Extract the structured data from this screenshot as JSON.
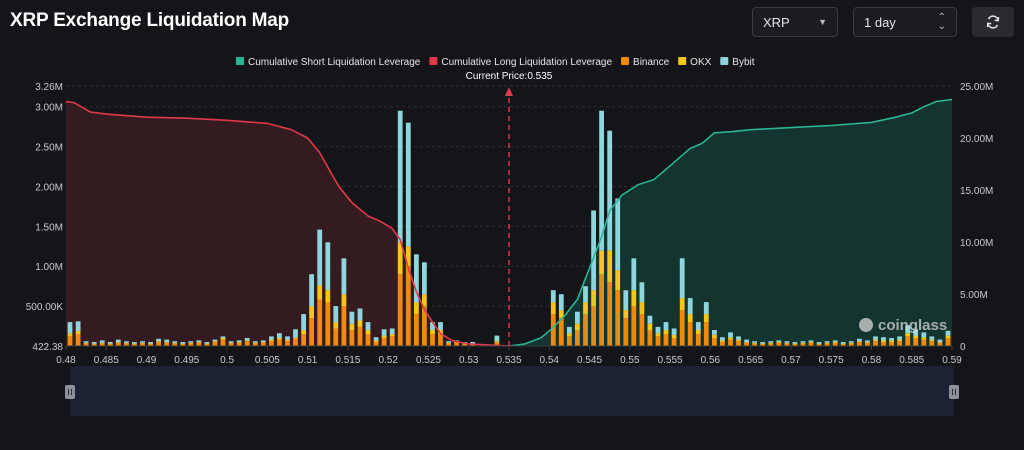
{
  "title": "XRP Exchange Liquidation Map",
  "controls": {
    "symbol": "XRP",
    "range": "1 day",
    "refresh_icon": "refresh-icon"
  },
  "chart_data": {
    "type": "bar",
    "title": "XRP Exchange Liquidation Map",
    "current_price_label": "Current Price:0.535",
    "current_price": 0.535,
    "legend": [
      {
        "name": "Cumulative Short Liquidation Leverage",
        "color": "#2bb596"
      },
      {
        "name": "Cumulative Long Liquidation Leverage",
        "color": "#e0394a"
      },
      {
        "name": "Binance",
        "color": "#f08a0c"
      },
      {
        "name": "OKX",
        "color": "#f5c518"
      },
      {
        "name": "Bybit",
        "color": "#8fd5dc"
      }
    ],
    "x_ticks": [
      "0.48",
      "0.485",
      "0.49",
      "0.495",
      "0.5",
      "0.505",
      "0.51",
      "0.515",
      "0.52",
      "0.525",
      "0.53",
      "0.535",
      "0.54",
      "0.545",
      "0.55",
      "0.555",
      "0.56",
      "0.565",
      "0.57",
      "0.575",
      "0.58",
      "0.585",
      "0.59"
    ],
    "x_range": [
      0.48,
      0.59
    ],
    "y_left_ticks": [
      "3.26M",
      "3.00M",
      "2.50M",
      "2.00M",
      "1.50M",
      "1.00M",
      "500.00K",
      "422.38"
    ],
    "y_left_range": [
      0,
      3260000
    ],
    "y_right_ticks": [
      "25.00M",
      "20.00M",
      "15.00M",
      "10.00M",
      "5.00M",
      "0"
    ],
    "y_right_range": [
      0,
      25000000
    ],
    "bars": [
      {
        "x": 0.4805,
        "binance": 120000,
        "okx": 40000,
        "bybit": 140000
      },
      {
        "x": 0.4815,
        "binance": 150000,
        "okx": 40000,
        "bybit": 120000
      },
      {
        "x": 0.4825,
        "binance": 30000,
        "okx": 10000,
        "bybit": 20000
      },
      {
        "x": 0.4835,
        "binance": 20000,
        "okx": 10000,
        "bybit": 20000
      },
      {
        "x": 0.4845,
        "binance": 30000,
        "okx": 10000,
        "bybit": 30000
      },
      {
        "x": 0.4855,
        "binance": 20000,
        "okx": 10000,
        "bybit": 20000
      },
      {
        "x": 0.4865,
        "binance": 40000,
        "okx": 10000,
        "bybit": 30000
      },
      {
        "x": 0.4875,
        "binance": 30000,
        "okx": 10000,
        "bybit": 20000
      },
      {
        "x": 0.4885,
        "binance": 20000,
        "okx": 10000,
        "bybit": 20000
      },
      {
        "x": 0.4895,
        "binance": 30000,
        "okx": 10000,
        "bybit": 20000
      },
      {
        "x": 0.4905,
        "binance": 20000,
        "okx": 10000,
        "bybit": 20000
      },
      {
        "x": 0.4915,
        "binance": 50000,
        "okx": 10000,
        "bybit": 30000
      },
      {
        "x": 0.4925,
        "binance": 40000,
        "okx": 10000,
        "bybit": 30000
      },
      {
        "x": 0.4935,
        "binance": 30000,
        "okx": 10000,
        "bybit": 20000
      },
      {
        "x": 0.4945,
        "binance": 20000,
        "okx": 10000,
        "bybit": 20000
      },
      {
        "x": 0.4955,
        "binance": 30000,
        "okx": 10000,
        "bybit": 20000
      },
      {
        "x": 0.4965,
        "binance": 40000,
        "okx": 10000,
        "bybit": 20000
      },
      {
        "x": 0.4975,
        "binance": 20000,
        "okx": 10000,
        "bybit": 20000
      },
      {
        "x": 0.4985,
        "binance": 50000,
        "okx": 10000,
        "bybit": 20000
      },
      {
        "x": 0.4995,
        "binance": 80000,
        "okx": 20000,
        "bybit": 20000
      },
      {
        "x": 0.5005,
        "binance": 30000,
        "okx": 10000,
        "bybit": 20000
      },
      {
        "x": 0.5015,
        "binance": 40000,
        "okx": 10000,
        "bybit": 20000
      },
      {
        "x": 0.5025,
        "binance": 60000,
        "okx": 10000,
        "bybit": 30000
      },
      {
        "x": 0.5035,
        "binance": 30000,
        "okx": 10000,
        "bybit": 20000
      },
      {
        "x": 0.5045,
        "binance": 40000,
        "okx": 10000,
        "bybit": 20000
      },
      {
        "x": 0.5055,
        "binance": 60000,
        "okx": 20000,
        "bybit": 40000
      },
      {
        "x": 0.5065,
        "binance": 80000,
        "okx": 20000,
        "bybit": 60000
      },
      {
        "x": 0.5075,
        "binance": 60000,
        "okx": 20000,
        "bybit": 40000
      },
      {
        "x": 0.5085,
        "binance": 90000,
        "okx": 20000,
        "bybit": 100000
      },
      {
        "x": 0.5095,
        "binance": 150000,
        "okx": 50000,
        "bybit": 200000
      },
      {
        "x": 0.5105,
        "binance": 350000,
        "okx": 150000,
        "bybit": 400000
      },
      {
        "x": 0.5115,
        "binance": 580000,
        "okx": 180000,
        "bybit": 700000
      },
      {
        "x": 0.5125,
        "binance": 550000,
        "okx": 150000,
        "bybit": 600000
      },
      {
        "x": 0.5135,
        "binance": 220000,
        "okx": 80000,
        "bybit": 200000
      },
      {
        "x": 0.5145,
        "binance": 500000,
        "okx": 150000,
        "bybit": 450000
      },
      {
        "x": 0.5155,
        "binance": 200000,
        "okx": 80000,
        "bybit": 150000
      },
      {
        "x": 0.5165,
        "binance": 240000,
        "okx": 80000,
        "bybit": 150000
      },
      {
        "x": 0.5175,
        "binance": 150000,
        "okx": 50000,
        "bybit": 100000
      },
      {
        "x": 0.5185,
        "binance": 50000,
        "okx": 20000,
        "bybit": 40000
      },
      {
        "x": 0.5195,
        "binance": 100000,
        "okx": 30000,
        "bybit": 80000
      },
      {
        "x": 0.5205,
        "binance": 120000,
        "okx": 30000,
        "bybit": 70000
      },
      {
        "x": 0.5215,
        "binance": 900000,
        "okx": 400000,
        "bybit": 1650000
      },
      {
        "x": 0.5225,
        "binance": 1000000,
        "okx": 250000,
        "bybit": 1550000
      },
      {
        "x": 0.5235,
        "binance": 400000,
        "okx": 150000,
        "bybit": 600000
      },
      {
        "x": 0.5245,
        "binance": 500000,
        "okx": 150000,
        "bybit": 400000
      },
      {
        "x": 0.5255,
        "binance": 150000,
        "okx": 50000,
        "bybit": 100000
      },
      {
        "x": 0.5265,
        "binance": 150000,
        "okx": 50000,
        "bybit": 100000
      },
      {
        "x": 0.5275,
        "binance": 30000,
        "okx": 10000,
        "bybit": 20000
      },
      {
        "x": 0.5285,
        "binance": 40000,
        "okx": 10000,
        "bybit": 20000
      },
      {
        "x": 0.5295,
        "binance": 20000,
        "okx": 10000,
        "bybit": 20000
      },
      {
        "x": 0.5305,
        "binance": 20000,
        "okx": 10000,
        "bybit": 20000
      },
      {
        "x": 0.5335,
        "binance": 40000,
        "okx": 20000,
        "bybit": 70000
      },
      {
        "x": 0.5405,
        "binance": 400000,
        "okx": 150000,
        "bybit": 150000
      },
      {
        "x": 0.5415,
        "binance": 350000,
        "okx": 100000,
        "bybit": 200000
      },
      {
        "x": 0.5425,
        "binance": 120000,
        "okx": 40000,
        "bybit": 80000
      },
      {
        "x": 0.5435,
        "binance": 200000,
        "okx": 80000,
        "bybit": 150000
      },
      {
        "x": 0.5445,
        "binance": 400000,
        "okx": 150000,
        "bybit": 200000
      },
      {
        "x": 0.5455,
        "binance": 500000,
        "okx": 200000,
        "bybit": 1000000
      },
      {
        "x": 0.5465,
        "binance": 900000,
        "okx": 300000,
        "bybit": 1750000
      },
      {
        "x": 0.5475,
        "binance": 800000,
        "okx": 400000,
        "bybit": 1500000
      },
      {
        "x": 0.5485,
        "binance": 700000,
        "okx": 250000,
        "bybit": 900000
      },
      {
        "x": 0.5495,
        "binance": 350000,
        "okx": 100000,
        "bybit": 250000
      },
      {
        "x": 0.5505,
        "binance": 500000,
        "okx": 200000,
        "bybit": 400000
      },
      {
        "x": 0.5515,
        "binance": 400000,
        "okx": 150000,
        "bybit": 250000
      },
      {
        "x": 0.5525,
        "binance": 200000,
        "okx": 80000,
        "bybit": 100000
      },
      {
        "x": 0.5535,
        "binance": 120000,
        "okx": 40000,
        "bybit": 80000
      },
      {
        "x": 0.5545,
        "binance": 150000,
        "okx": 50000,
        "bybit": 100000
      },
      {
        "x": 0.5555,
        "binance": 100000,
        "okx": 40000,
        "bybit": 80000
      },
      {
        "x": 0.5565,
        "binance": 450000,
        "okx": 150000,
        "bybit": 500000
      },
      {
        "x": 0.5575,
        "binance": 300000,
        "okx": 100000,
        "bybit": 200000
      },
      {
        "x": 0.5585,
        "binance": 150000,
        "okx": 50000,
        "bybit": 100000
      },
      {
        "x": 0.5595,
        "binance": 300000,
        "okx": 100000,
        "bybit": 150000
      },
      {
        "x": 0.5605,
        "binance": 100000,
        "okx": 40000,
        "bybit": 60000
      },
      {
        "x": 0.5615,
        "binance": 50000,
        "okx": 20000,
        "bybit": 40000
      },
      {
        "x": 0.5625,
        "binance": 80000,
        "okx": 30000,
        "bybit": 60000
      },
      {
        "x": 0.5635,
        "binance": 60000,
        "okx": 20000,
        "bybit": 40000
      },
      {
        "x": 0.5645,
        "binance": 40000,
        "okx": 10000,
        "bybit": 30000
      },
      {
        "x": 0.5655,
        "binance": 30000,
        "okx": 10000,
        "bybit": 20000
      },
      {
        "x": 0.5665,
        "binance": 20000,
        "okx": 10000,
        "bybit": 20000
      },
      {
        "x": 0.5675,
        "binance": 30000,
        "okx": 10000,
        "bybit": 20000
      },
      {
        "x": 0.5685,
        "binance": 40000,
        "okx": 10000,
        "bybit": 20000
      },
      {
        "x": 0.5695,
        "binance": 30000,
        "okx": 10000,
        "bybit": 20000
      },
      {
        "x": 0.5705,
        "binance": 20000,
        "okx": 10000,
        "bybit": 20000
      },
      {
        "x": 0.5715,
        "binance": 30000,
        "okx": 10000,
        "bybit": 20000
      },
      {
        "x": 0.5725,
        "binance": 40000,
        "okx": 10000,
        "bybit": 20000
      },
      {
        "x": 0.5735,
        "binance": 20000,
        "okx": 10000,
        "bybit": 20000
      },
      {
        "x": 0.5745,
        "binance": 30000,
        "okx": 10000,
        "bybit": 20000
      },
      {
        "x": 0.5755,
        "binance": 40000,
        "okx": 10000,
        "bybit": 20000
      },
      {
        "x": 0.5765,
        "binance": 20000,
        "okx": 10000,
        "bybit": 20000
      },
      {
        "x": 0.5775,
        "binance": 30000,
        "okx": 10000,
        "bybit": 20000
      },
      {
        "x": 0.5785,
        "binance": 50000,
        "okx": 10000,
        "bybit": 30000
      },
      {
        "x": 0.5795,
        "binance": 40000,
        "okx": 10000,
        "bybit": 20000
      },
      {
        "x": 0.5805,
        "binance": 60000,
        "okx": 20000,
        "bybit": 40000
      },
      {
        "x": 0.5815,
        "binance": 50000,
        "okx": 20000,
        "bybit": 40000
      },
      {
        "x": 0.5825,
        "binance": 50000,
        "okx": 20000,
        "bybit": 30000
      },
      {
        "x": 0.5835,
        "binance": 60000,
        "okx": 20000,
        "bybit": 40000
      },
      {
        "x": 0.5845,
        "binance": 120000,
        "okx": 40000,
        "bybit": 100000
      },
      {
        "x": 0.5855,
        "binance": 100000,
        "okx": 30000,
        "bybit": 80000
      },
      {
        "x": 0.5865,
        "binance": 80000,
        "okx": 30000,
        "bybit": 60000
      },
      {
        "x": 0.5875,
        "binance": 60000,
        "okx": 20000,
        "bybit": 40000
      },
      {
        "x": 0.5885,
        "binance": 40000,
        "okx": 10000,
        "bybit": 30000
      },
      {
        "x": 0.5895,
        "binance": 100000,
        "okx": 30000,
        "bybit": 60000
      }
    ],
    "long_curve": [
      [
        0.48,
        23.5
      ],
      [
        0.481,
        23.4
      ],
      [
        0.483,
        22.5
      ],
      [
        0.485,
        22.3
      ],
      [
        0.49,
        22.0
      ],
      [
        0.495,
        21.9
      ],
      [
        0.5,
        21.7
      ],
      [
        0.505,
        21.4
      ],
      [
        0.508,
        20.8
      ],
      [
        0.51,
        20.0
      ],
      [
        0.5115,
        18.6
      ],
      [
        0.513,
        16.5
      ],
      [
        0.514,
        15.2
      ],
      [
        0.5155,
        13.8
      ],
      [
        0.5175,
        12.5
      ],
      [
        0.519,
        12.0
      ],
      [
        0.5205,
        11.3
      ],
      [
        0.5215,
        10.2
      ],
      [
        0.5225,
        7.5
      ],
      [
        0.5235,
        5.2
      ],
      [
        0.5245,
        3.5
      ],
      [
        0.5255,
        2.3
      ],
      [
        0.5265,
        1.2
      ],
      [
        0.528,
        0.5
      ],
      [
        0.53,
        0.2
      ],
      [
        0.535,
        0.0
      ]
    ],
    "short_curve": [
      [
        0.535,
        0.0
      ],
      [
        0.537,
        0.2
      ],
      [
        0.539,
        0.8
      ],
      [
        0.5405,
        1.8
      ],
      [
        0.542,
        3.0
      ],
      [
        0.5435,
        4.5
      ],
      [
        0.5445,
        6.5
      ],
      [
        0.5455,
        8.5
      ],
      [
        0.5465,
        10.5
      ],
      [
        0.5475,
        13.0
      ],
      [
        0.549,
        14.5
      ],
      [
        0.551,
        15.5
      ],
      [
        0.553,
        16.0
      ],
      [
        0.5545,
        17.0
      ],
      [
        0.556,
        18.0
      ],
      [
        0.5575,
        19.0
      ],
      [
        0.559,
        19.5
      ],
      [
        0.5605,
        20.5
      ],
      [
        0.5625,
        20.6
      ],
      [
        0.565,
        20.8
      ],
      [
        0.57,
        21.0
      ],
      [
        0.575,
        21.2
      ],
      [
        0.58,
        21.5
      ],
      [
        0.583,
        22.0
      ],
      [
        0.585,
        22.4
      ],
      [
        0.5865,
        23.0
      ],
      [
        0.588,
        23.5
      ],
      [
        0.59,
        23.7
      ]
    ],
    "watermark": "coinglass"
  }
}
